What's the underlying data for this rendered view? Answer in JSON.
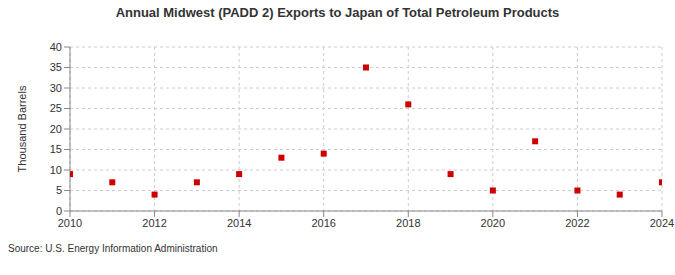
{
  "chart_data": {
    "type": "scatter",
    "title": "Annual Midwest (PADD 2) Exports to Japan of Total Petroleum Products",
    "y_label": "Thousand Barrels",
    "source": "Source: U.S. Energy Information Administration",
    "x": [
      2010,
      2011,
      2012,
      2013,
      2014,
      2015,
      2016,
      2017,
      2018,
      2019,
      2020,
      2021,
      2022,
      2023,
      2024
    ],
    "values": [
      9,
      7,
      4,
      7,
      9,
      13,
      14,
      35,
      26,
      9,
      5,
      17,
      5,
      4,
      7
    ],
    "color": "#cc0000",
    "marker": "square",
    "xlim": [
      2010,
      2024
    ],
    "xticks": [
      2010,
      2012,
      2014,
      2016,
      2018,
      2020,
      2022,
      2024
    ],
    "ylim": [
      0,
      40
    ],
    "yticks": [
      0,
      5,
      10,
      15,
      20,
      25,
      30,
      35,
      40
    ],
    "grid": true
  }
}
